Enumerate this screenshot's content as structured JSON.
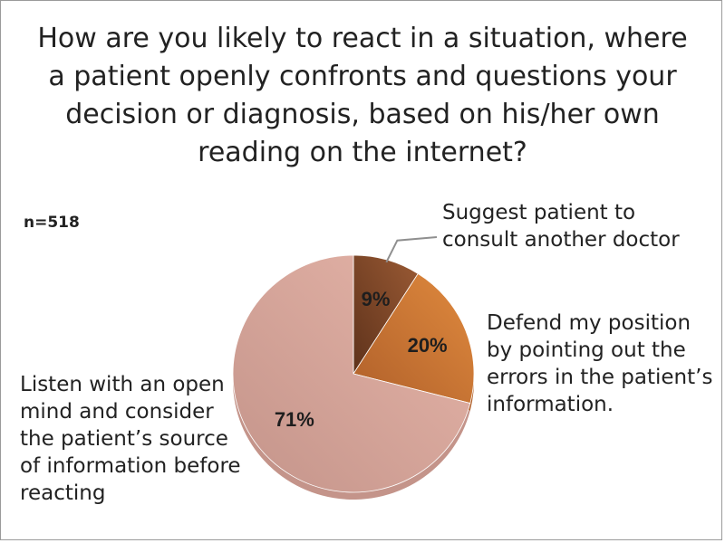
{
  "title": "How are you likely to react in a situation, where a patient openly confronts and questions your decision or diagnosis, based on his/her own reading on the internet?",
  "sample_size": "n=518",
  "chart_data": {
    "type": "pie",
    "title": "How are you likely to react in a situation, where a patient openly confronts and questions your decision or diagnosis, based on his/her own reading on the internet?",
    "categories": [
      "Suggest patient to consult another doctor",
      "Defend my position by pointing out the errors in the patient’s information.",
      "Listen with an open mind and consider the patient’s source of information before reacting"
    ],
    "values": [
      9,
      20,
      71
    ],
    "value_labels": [
      "9%",
      "20%",
      "71%"
    ],
    "colors": [
      "#9a5a34",
      "#e08a3e",
      "#e6b5a9"
    ],
    "colors_dark": [
      "#5e321b",
      "#b0602a",
      "#c4948a"
    ],
    "legend": "none",
    "data_labels": "inside"
  }
}
